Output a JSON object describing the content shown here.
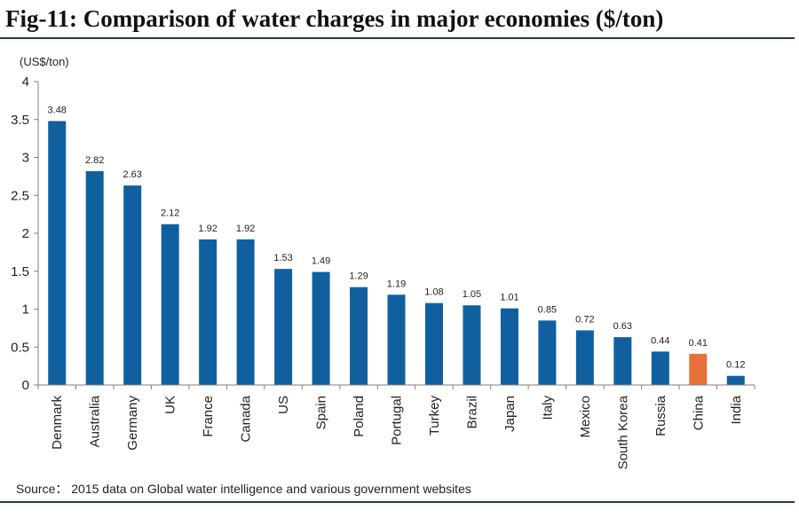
{
  "title": "Fig-11: Comparison of water charges in major economies ($/ton)",
  "chart_data": {
    "type": "bar",
    "unit_label": "(US$/ton)",
    "categories": [
      "Denmark",
      "Australia",
      "Germany",
      "UK",
      "France",
      "Canada",
      "US",
      "Spain",
      "Poland",
      "Portugal",
      "Turkey",
      "Brazil",
      "Japan",
      "Italy",
      "Mexico",
      "South Korea",
      "Russia",
      "China",
      "India"
    ],
    "values": [
      3.48,
      2.82,
      2.63,
      2.12,
      1.92,
      1.92,
      1.53,
      1.49,
      1.29,
      1.19,
      1.08,
      1.05,
      1.01,
      0.85,
      0.72,
      0.63,
      0.44,
      0.41,
      0.12
    ],
    "value_labels": [
      "3.48",
      "2.82",
      "2.63",
      "2.12",
      "1.92",
      "1.92",
      "1.53",
      "1.49",
      "1.29",
      "1.19",
      "1.08",
      "1.05",
      "1.01",
      "0.85",
      "0.72",
      "0.63",
      "0.44",
      "0.41",
      "0.12"
    ],
    "ylim": [
      0,
      4
    ],
    "yticks": [
      "0",
      "0.5",
      "1",
      "1.5",
      "2",
      "2.5",
      "3",
      "3.5",
      "4"
    ],
    "grid": false,
    "bar_color": "#1060a0",
    "highlight_color": "#e8713a",
    "highlight_category": "China"
  },
  "source": "Source：  2015 data on Global water intelligence and various government websites"
}
